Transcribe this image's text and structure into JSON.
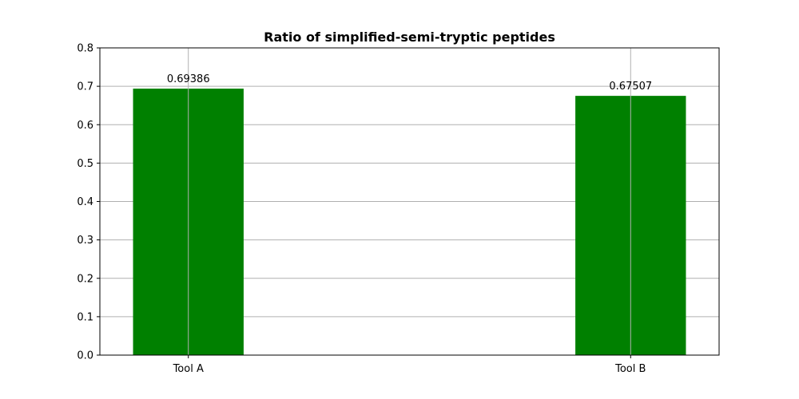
{
  "chart_data": {
    "type": "bar",
    "title": "Ratio of simplified-semi-tryptic peptides",
    "xlabel": "",
    "ylabel": "",
    "categories": [
      "Tool A",
      "Tool B"
    ],
    "values": [
      0.69386,
      0.67507
    ],
    "value_labels": [
      "0.69386",
      "0.67507"
    ],
    "ylim": [
      0,
      0.8
    ],
    "yticks": [
      0.0,
      0.1,
      0.2,
      0.3,
      0.4,
      0.5,
      0.6,
      0.7,
      0.8
    ],
    "ytick_labels": [
      "0.0",
      "0.1",
      "0.2",
      "0.3",
      "0.4",
      "0.5",
      "0.6",
      "0.7",
      "0.8"
    ],
    "grid": true,
    "bar_color": "#008000",
    "grid_color": "#b0b0b0"
  }
}
